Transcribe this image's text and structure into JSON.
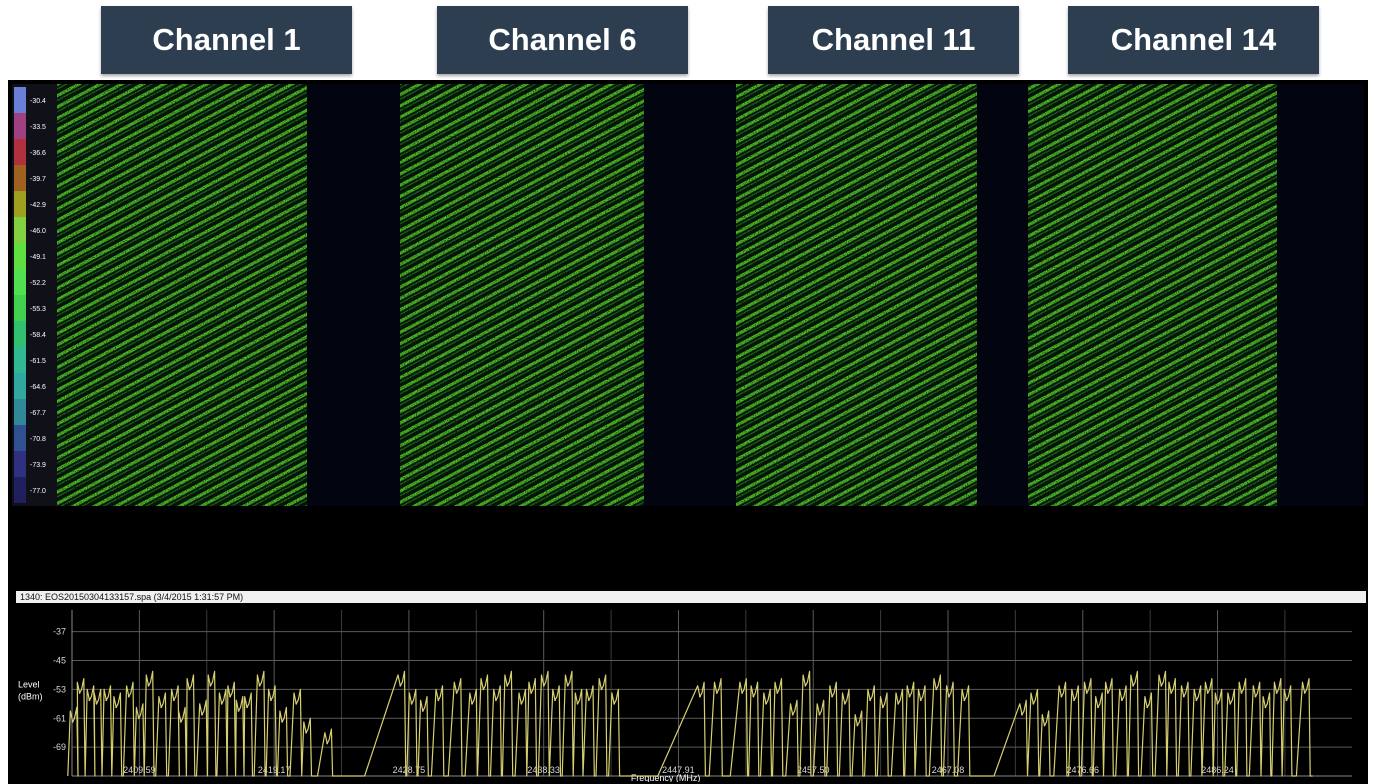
{
  "channels": [
    {
      "label": "Channel 1"
    },
    {
      "label": "Channel 6"
    },
    {
      "label": "Channel 11"
    },
    {
      "label": "Channel 14"
    }
  ],
  "waterfall": {
    "caption": "1340: EOS20150304133157.spa (3/4/2015 1:31:57 PM)",
    "scale_labels": [
      "-30.4",
      "-33.5",
      "-36.6",
      "-39.7",
      "-42.9",
      "-46.0",
      "-49.1",
      "-52.2",
      "-55.3",
      "-58.4",
      "-61.5",
      "-64.6",
      "-67.7",
      "-70.8",
      "-73.9",
      "-77.0"
    ],
    "scale_colors": [
      "#6a7fd8",
      "#a04080",
      "#b03040",
      "#a06020",
      "#a0a020",
      "#80d040",
      "#60e040",
      "#50e050",
      "#40d050",
      "#30c070",
      "#30b890",
      "#30a8a0",
      "#308898",
      "#305090",
      "#303080",
      "#202060"
    ],
    "signal_color": "#5ad82e"
  },
  "chart_data": {
    "type": "line",
    "xlabel": "Frequency (MHz)",
    "ylabel_line1": "Level",
    "ylabel_line2": "(dBm)",
    "x_tick_labels": [
      "2409.59",
      "2419.17",
      "2428.75",
      "2438.33",
      "2447.91",
      "2457.50",
      "2467.08",
      "2476.66",
      "2486.24"
    ],
    "y_tick_labels": [
      "-37",
      "-45",
      "-53",
      "-61",
      "-69"
    ],
    "y_ticks": [
      -37,
      -45,
      -53,
      -61,
      -69
    ],
    "xlim": [
      2404.8,
      2495.8
    ],
    "ylim": [
      -77,
      -31
    ],
    "grid": true,
    "line_color": "#d8d070",
    "peaks_x": [
      2404.9,
      2405.4,
      2406.1,
      2406.6,
      2407.3,
      2408.0,
      2408.9,
      2409.6,
      2410.3,
      2411.2,
      2412.1,
      2412.6,
      2413.2,
      2414.1,
      2414.7,
      2415.5,
      2416.1,
      2416.7,
      2417.3,
      2418.2,
      2419.0,
      2419.8,
      2420.8,
      2421.5,
      2423.0,
      2428.2,
      2429.0,
      2429.8,
      2430.9,
      2432.2,
      2433.3,
      2434.1,
      2435.0,
      2435.8,
      2436.8,
      2437.5,
      2438.4,
      2439.2,
      2440.1,
      2440.8,
      2441.6,
      2442.5,
      2443.4,
      2449.5,
      2450.7,
      2452.5,
      2453.3,
      2454.2,
      2455.0,
      2456.1,
      2457.0,
      2458.0,
      2458.9,
      2459.8,
      2460.7,
      2461.6,
      2462.5,
      2463.6,
      2464.4,
      2465.2,
      2466.3,
      2467.2,
      2468.3,
      2472.4,
      2473.2,
      2474.0,
      2475.2,
      2476.1,
      2477.0,
      2477.8,
      2478.5,
      2479.5,
      2480.3,
      2481.3,
      2482.3,
      2483.0,
      2483.9,
      2484.8,
      2485.6,
      2486.3,
      2487.2,
      2488.0,
      2489.0,
      2489.7,
      2490.5,
      2491.2,
      2492.5
    ],
    "peaks_y": [
      -62,
      -54,
      -56,
      -57,
      -56,
      -58,
      -55,
      -61,
      -52,
      -58,
      -56,
      -62,
      -53,
      -60,
      -52,
      -57,
      -55,
      -59,
      -58,
      -52,
      -56,
      -62,
      -57,
      -65,
      -68,
      -52,
      -57,
      -59,
      -56,
      -54,
      -57,
      -53,
      -56,
      -52,
      -57,
      -54,
      -52,
      -56,
      -52,
      -57,
      -56,
      -53,
      -57,
      -55,
      -54,
      -54,
      -55,
      -57,
      -54,
      -60,
      -52,
      -60,
      -55,
      -57,
      -63,
      -56,
      -58,
      -57,
      -55,
      -56,
      -53,
      -55,
      -56,
      -60,
      -57,
      -63,
      -55,
      -56,
      -54,
      -58,
      -54,
      -56,
      -52,
      -58,
      -52,
      -54,
      -55,
      -56,
      -54,
      -57,
      -57,
      -54,
      -55,
      -58,
      -54,
      -56,
      -54
    ]
  }
}
